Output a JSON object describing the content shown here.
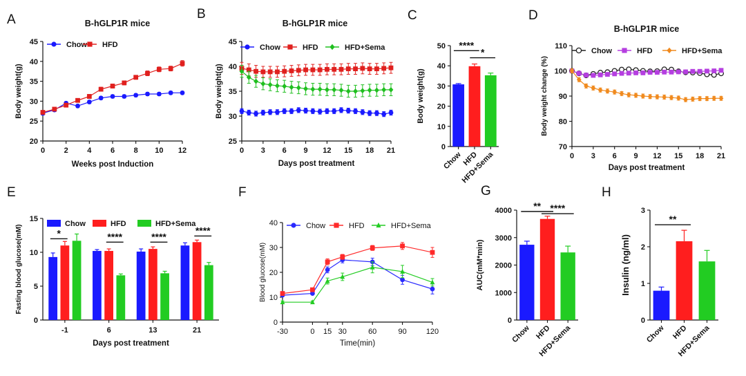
{
  "chart_data": [
    {
      "id": "A",
      "panel_label": "A",
      "type": "line",
      "title": "B-hGLP1R mice",
      "xlabel": "Weeks post Induction",
      "ylabel": "Body weight(g)",
      "xlim": [
        0,
        12
      ],
      "ylim": [
        20,
        45
      ],
      "xticks": [
        0,
        2,
        4,
        6,
        8,
        10,
        12
      ],
      "yticks": [
        20,
        25,
        30,
        35,
        40,
        45
      ],
      "x": [
        0,
        1,
        2,
        3,
        4,
        5,
        6,
        7,
        8,
        9,
        10,
        11,
        12
      ],
      "series": [
        {
          "name": "Chow",
          "color": "#1a1aff",
          "marker": "circle",
          "values": [
            27.0,
            27.8,
            29.5,
            28.8,
            29.8,
            30.8,
            31.2,
            31.2,
            31.5,
            31.8,
            31.8,
            32.1,
            32.1
          ],
          "errors": [
            0.5,
            0.4,
            0.4,
            0.4,
            0.4,
            0.4,
            0.4,
            0.4,
            0.4,
            0.4,
            0.4,
            0.4,
            0.4
          ]
        },
        {
          "name": "HFD",
          "color": "#e0201e",
          "marker": "square",
          "values": [
            27.2,
            28.0,
            29.0,
            30.2,
            31.2,
            33.0,
            33.8,
            34.6,
            36.0,
            37.0,
            38.0,
            38.2,
            39.5
          ],
          "errors": [
            0.4,
            0.4,
            0.4,
            0.4,
            0.5,
            0.5,
            0.5,
            0.5,
            0.5,
            0.6,
            0.6,
            0.6,
            0.7
          ]
        }
      ],
      "legend": "top-left"
    },
    {
      "id": "B",
      "panel_label": "B",
      "type": "line",
      "title": "B-hGLP1R mice",
      "xlabel": "Days post treatment",
      "ylabel": "Body weight(g)",
      "xlim": [
        0,
        21
      ],
      "ylim": [
        25,
        45
      ],
      "xticks": [
        0,
        3,
        6,
        9,
        12,
        15,
        18,
        21
      ],
      "yticks": [
        25,
        30,
        35,
        40,
        45
      ],
      "x": [
        0,
        1,
        2,
        3,
        4,
        5,
        6,
        7,
        8,
        9,
        10,
        11,
        12,
        13,
        14,
        15,
        16,
        17,
        18,
        19,
        20,
        21
      ],
      "series": [
        {
          "name": "Chow",
          "color": "#1a1aff",
          "marker": "circle",
          "values": [
            31.0,
            30.7,
            30.5,
            30.7,
            30.8,
            30.8,
            31.0,
            31.0,
            31.2,
            31.1,
            31.0,
            30.9,
            31.0,
            31.0,
            31.2,
            31.1,
            31.0,
            30.8,
            30.6,
            30.6,
            30.4,
            30.7
          ],
          "errors": [
            0.5,
            0.5,
            0.5,
            0.5,
            0.5,
            0.5,
            0.5,
            0.5,
            0.5,
            0.5,
            0.5,
            0.5,
            0.5,
            0.5,
            0.5,
            0.5,
            0.5,
            0.5,
            0.5,
            0.5,
            0.5,
            0.5
          ]
        },
        {
          "name": "HFD",
          "color": "#e0201e",
          "marker": "square",
          "values": [
            39.6,
            39.3,
            39.0,
            38.9,
            38.9,
            38.9,
            39.0,
            39.1,
            39.2,
            39.3,
            39.3,
            39.3,
            39.4,
            39.4,
            39.4,
            39.5,
            39.5,
            39.6,
            39.5,
            39.5,
            39.6,
            39.7
          ],
          "errors": [
            1.2,
            1.2,
            1.2,
            1.1,
            1.1,
            1.1,
            1.1,
            1.1,
            1.1,
            1.1,
            1.1,
            1.1,
            1.1,
            1.1,
            1.1,
            1.1,
            1.1,
            1.1,
            1.1,
            1.1,
            1.1,
            1.1
          ]
        },
        {
          "name": "HFD+Sema",
          "color": "#1fbf1f",
          "marker": "diamond",
          "values": [
            39.0,
            37.8,
            37.0,
            36.5,
            36.3,
            36.1,
            36.0,
            35.8,
            35.7,
            35.5,
            35.4,
            35.4,
            35.3,
            35.3,
            35.2,
            35.0,
            35.0,
            35.1,
            35.2,
            35.2,
            35.3,
            35.3
          ],
          "errors": [
            1.2,
            1.2,
            1.2,
            1.2,
            1.2,
            1.2,
            1.2,
            1.2,
            1.2,
            1.2,
            1.2,
            1.2,
            1.2,
            1.2,
            1.2,
            1.2,
            1.2,
            1.2,
            1.2,
            1.2,
            1.2,
            1.2
          ]
        }
      ],
      "legend": "top"
    },
    {
      "id": "C",
      "panel_label": "C",
      "type": "bar",
      "title": "",
      "xlabel": "",
      "ylabel": "Body weight(g)",
      "ylim": [
        0,
        50
      ],
      "yticks": [
        0,
        10,
        20,
        30,
        40,
        50
      ],
      "categories": [
        "Chow",
        "HFD",
        "HFD+Sema"
      ],
      "values": [
        30.8,
        39.8,
        35.3
      ],
      "errors": [
        0.4,
        1.1,
        1.1
      ],
      "colors": [
        "#1a1aff",
        "#ff1e1e",
        "#22cc22"
      ],
      "significance": [
        {
          "from": 0,
          "to": 1,
          "label": "****",
          "y": 47.5
        },
        {
          "from": 1,
          "to": 2,
          "label": "*",
          "y": 44.0
        }
      ]
    },
    {
      "id": "D",
      "panel_label": "D",
      "type": "line",
      "title": "B-hGLP1R mice",
      "xlabel": "Days post treatment",
      "ylabel": "Body weight change (%)",
      "xlim": [
        0,
        21
      ],
      "ylim": [
        70,
        110
      ],
      "xticks": [
        0,
        3,
        6,
        9,
        12,
        15,
        18,
        21
      ],
      "yticks": [
        70,
        80,
        90,
        100,
        110
      ],
      "x": [
        0,
        1,
        2,
        3,
        4,
        5,
        6,
        7,
        8,
        9,
        10,
        11,
        12,
        13,
        14,
        15,
        16,
        17,
        18,
        19,
        20,
        21
      ],
      "series": [
        {
          "name": "Chow",
          "color": "#222222",
          "marker": "open-circle",
          "values": [
            100.0,
            99.0,
            98.2,
            98.8,
            99.3,
            99.5,
            100.0,
            100.5,
            100.6,
            100.3,
            100.0,
            99.8,
            99.9,
            100.6,
            100.5,
            99.8,
            99.4,
            99.3,
            99.1,
            98.6,
            98.4,
            99.0
          ],
          "errors": [
            0.4,
            0.4,
            0.4,
            0.4,
            0.4,
            0.4,
            0.4,
            0.4,
            0.4,
            0.4,
            0.4,
            0.4,
            0.4,
            0.4,
            0.4,
            0.4,
            0.4,
            0.4,
            0.4,
            0.4,
            0.4,
            0.4
          ]
        },
        {
          "name": "HFD",
          "color": "#b53fe0",
          "marker": "square",
          "values": [
            100.0,
            99.0,
            98.3,
            98.2,
            98.4,
            98.6,
            98.8,
            99.0,
            99.1,
            99.2,
            99.2,
            99.4,
            99.4,
            99.5,
            99.5,
            99.6,
            99.6,
            99.8,
            99.8,
            99.9,
            100.0,
            100.2
          ],
          "errors": [
            0.4,
            0.4,
            0.4,
            0.4,
            0.4,
            0.4,
            0.4,
            0.4,
            0.4,
            0.4,
            0.4,
            0.4,
            0.4,
            0.4,
            0.4,
            0.4,
            0.4,
            0.4,
            0.4,
            0.4,
            0.4,
            0.4
          ]
        },
        {
          "name": "HFD+Sema",
          "color": "#f08a1e",
          "marker": "diamond",
          "values": [
            100.0,
            96.5,
            94.0,
            93.2,
            92.4,
            92.0,
            91.6,
            91.0,
            90.5,
            90.3,
            90.0,
            89.8,
            89.7,
            89.6,
            89.4,
            89.2,
            88.6,
            88.8,
            89.0,
            89.0,
            89.1,
            89.1
          ],
          "errors": [
            0.8,
            0.8,
            0.8,
            0.8,
            0.8,
            0.8,
            0.8,
            0.8,
            0.8,
            0.8,
            0.8,
            0.8,
            0.8,
            0.8,
            0.8,
            0.8,
            0.8,
            0.8,
            0.8,
            0.8,
            0.8,
            0.8
          ]
        }
      ],
      "legend": "top"
    },
    {
      "id": "E",
      "panel_label": "E",
      "type": "bar",
      "title": "",
      "xlabel": "Days post treatment",
      "ylabel": "Fasting blood glucose(mM)",
      "ylim": [
        0,
        15
      ],
      "yticks": [
        0,
        5,
        10,
        15
      ],
      "categories": [
        "-1",
        "6",
        "13",
        "21"
      ],
      "series": [
        {
          "name": "Chow",
          "color": "#1a1aff",
          "values": [
            9.3,
            10.2,
            10.1,
            11.0
          ],
          "errors": [
            0.6,
            0.2,
            0.4,
            0.4
          ]
        },
        {
          "name": "HFD",
          "color": "#ff1e1e",
          "values": [
            11.0,
            10.2,
            10.5,
            11.5
          ],
          "errors": [
            0.6,
            0.3,
            0.3,
            0.3
          ]
        },
        {
          "name": "HFD+Sema",
          "color": "#22cc22",
          "values": [
            11.7,
            6.6,
            6.9,
            8.1
          ],
          "errors": [
            1.0,
            0.2,
            0.3,
            0.4
          ]
        }
      ],
      "significance": [
        {
          "group": 0,
          "from": 0,
          "to": 1,
          "label": "*",
          "y": 12.0
        },
        {
          "group": 1,
          "from": 1,
          "to": 2,
          "label": "****",
          "y": 11.5
        },
        {
          "group": 2,
          "from": 1,
          "to": 2,
          "label": "****",
          "y": 11.5
        },
        {
          "group": 3,
          "from": 1,
          "to": 2,
          "label": "****",
          "y": 12.4
        }
      ],
      "legend": "top"
    },
    {
      "id": "F",
      "panel_label": "F",
      "type": "line",
      "title": "",
      "xlabel": "Time(min)",
      "ylabel": "Blood glucose(mM)",
      "xlim": [
        -30,
        120
      ],
      "ylim": [
        0,
        40
      ],
      "xticks": [
        -30,
        0,
        15,
        30,
        60,
        90,
        120
      ],
      "yticks": [
        0,
        10,
        20,
        30,
        40
      ],
      "x": [
        -30,
        0,
        15,
        30,
        60,
        90,
        120
      ],
      "series": [
        {
          "name": "Chow",
          "color": "#2a2aff",
          "marker": "circle",
          "values": [
            10.8,
            11.5,
            21.0,
            25.0,
            24.2,
            17.0,
            13.3
          ],
          "errors": [
            0.5,
            0.5,
            1.2,
            1.2,
            1.5,
            1.8,
            2.0
          ]
        },
        {
          "name": "HFD",
          "color": "#ff2a2a",
          "marker": "square",
          "values": [
            11.5,
            13.0,
            24.2,
            26.2,
            29.8,
            30.6,
            28.0
          ],
          "errors": [
            0.5,
            0.6,
            1.2,
            1.0,
            1.0,
            1.4,
            2.0
          ]
        },
        {
          "name": "HFD+Sema",
          "color": "#22cc22",
          "marker": "triangle",
          "values": [
            8.0,
            8.0,
            16.5,
            18.2,
            22.0,
            20.3,
            16.0
          ],
          "errors": [
            0.5,
            0.5,
            1.2,
            1.5,
            2.2,
            2.5,
            1.5
          ]
        }
      ],
      "legend": "top"
    },
    {
      "id": "G",
      "panel_label": "G",
      "type": "bar",
      "title": "",
      "xlabel": "",
      "ylabel": "AUC(mM*min)",
      "ylim": [
        0,
        4000
      ],
      "yticks": [
        0,
        1000,
        2000,
        3000,
        4000
      ],
      "categories": [
        "Chow",
        "HFD",
        "HFD+Sema"
      ],
      "values": [
        2740,
        3680,
        2460
      ],
      "errors": [
        130,
        100,
        230
      ],
      "colors": [
        "#1a1aff",
        "#ff1e1e",
        "#22cc22"
      ],
      "significance": [
        {
          "from": 0,
          "to": 1,
          "label": "**",
          "y": 3950
        },
        {
          "from": 1,
          "to": 2,
          "label": "****",
          "y": 3870
        }
      ]
    },
    {
      "id": "H",
      "panel_label": "H",
      "type": "bar",
      "title": "",
      "xlabel": "",
      "ylabel": "Insulin (ng/ml)",
      "ylim": [
        0,
        3
      ],
      "yticks": [
        0,
        1,
        2,
        3
      ],
      "categories": [
        "Chow",
        "HFD",
        "HFD+Sema"
      ],
      "values": [
        0.8,
        2.15,
        1.6
      ],
      "errors": [
        0.1,
        0.3,
        0.3
      ],
      "colors": [
        "#1a1aff",
        "#ff1e1e",
        "#22cc22"
      ],
      "significance": [
        {
          "from": 0,
          "to": 1,
          "label": "**",
          "y": 2.6
        }
      ]
    }
  ]
}
